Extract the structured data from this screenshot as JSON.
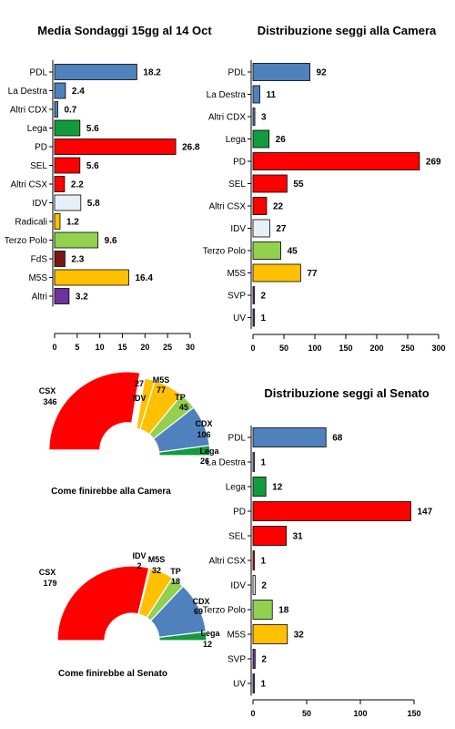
{
  "chart_data": [
    {
      "type": "bar",
      "title": "Media Sondaggi 15gg al 14 Oct",
      "categories": [
        "PDL",
        "La Destra",
        "Altri CDX",
        "Lega",
        "PD",
        "SEL",
        "Altri CSX",
        "IDV",
        "Radicali",
        "Terzo Polo",
        "FdS",
        "M5S",
        "Altri"
      ],
      "values": [
        18.2,
        2.4,
        0.7,
        5.6,
        26.8,
        5.6,
        2.2,
        5.8,
        1.2,
        9.6,
        2.3,
        16.4,
        3.2
      ],
      "value_labels": [
        "18.2",
        "2.4",
        "0.7",
        "5.6",
        "26.8",
        "5.6",
        "2.2",
        "5.8",
        "1.2",
        "9.6",
        "2.3",
        "16.4",
        "3.2"
      ],
      "colors": [
        "#4f81bd",
        "#4f81bd",
        "#4f81bd",
        "#129b3c",
        "#ff0000",
        "#ff0000",
        "#ff0000",
        "#e6f0f8",
        "#ffc000",
        "#92d050",
        "#7b1414",
        "#ffc000",
        "#7030a0"
      ],
      "xlim": [
        0,
        30
      ],
      "xticks": [
        "0",
        "5",
        "10",
        "15",
        "20",
        "25",
        "30"
      ]
    },
    {
      "type": "bar",
      "title": "Distribuzione seggi alla Camera",
      "categories": [
        "PDL",
        "La Destra",
        "Altri CDX",
        "Lega",
        "PD",
        "SEL",
        "Altri CSX",
        "IDV",
        "Terzo Polo",
        "M5S",
        "SVP",
        "UV"
      ],
      "values": [
        92,
        11,
        3,
        26,
        269,
        55,
        22,
        27,
        45,
        77,
        2,
        1
      ],
      "value_labels": [
        "92",
        "11",
        "3",
        "26",
        "269",
        "55",
        "22",
        "27",
        "45",
        "77",
        "2",
        "1"
      ],
      "colors": [
        "#4f81bd",
        "#4f81bd",
        "#4f81bd",
        "#129b3c",
        "#ff0000",
        "#ff0000",
        "#ff0000",
        "#e6f0f8",
        "#92d050",
        "#ffc000",
        "#7030a0",
        "#7030a0"
      ],
      "xlim": [
        0,
        300
      ],
      "xticks": [
        "0",
        "50",
        "100",
        "150",
        "200",
        "250",
        "300"
      ]
    },
    {
      "type": "bar",
      "title": "Distribuzione seggi al Senato",
      "categories": [
        "PDL",
        "La Destra",
        "Lega",
        "PD",
        "SEL",
        "Altri CSX",
        "IDV",
        "Terzo Polo",
        "M5S",
        "SVP",
        "UV"
      ],
      "values": [
        68,
        1,
        12,
        147,
        31,
        1,
        2,
        18,
        32,
        2,
        1
      ],
      "value_labels": [
        "68",
        "1",
        "12",
        "147",
        "31",
        "1",
        "2",
        "18",
        "32",
        "2",
        "1"
      ],
      "colors": [
        "#4f81bd",
        "#4f81bd",
        "#129b3c",
        "#ff0000",
        "#ff0000",
        "#ff0000",
        "#e6f0f8",
        "#92d050",
        "#ffc000",
        "#7030a0",
        "#7030a0"
      ],
      "xlim": [
        0,
        150
      ],
      "xticks": [
        "0",
        "50",
        "100",
        "150"
      ]
    },
    {
      "type": "pie",
      "subtype": "half-donut",
      "caption": "Come finirebbe alla Camera",
      "slices": [
        {
          "name": "CSX",
          "value": 346,
          "value_label": "346",
          "color": "#ff0000",
          "offset": true
        },
        {
          "name": "IDV",
          "value": 27,
          "value_label": "27",
          "color": "#ffc000"
        },
        {
          "name": "M5S",
          "value": 77,
          "value_label": "77",
          "color": "#ffc000"
        },
        {
          "name": "TP",
          "value": 45,
          "value_label": "45",
          "color": "#92d050"
        },
        {
          "name": "CDX",
          "value": 106,
          "value_label": "106",
          "color": "#4f81bd"
        },
        {
          "name": "Lega",
          "value": 26,
          "value_label": "26",
          "color": "#129b3c"
        }
      ]
    },
    {
      "type": "pie",
      "subtype": "half-donut",
      "caption": "Come finirebbe al Senato",
      "slices": [
        {
          "name": "CSX",
          "value": 179,
          "value_label": "179",
          "color": "#ff0000"
        },
        {
          "name": "IDV",
          "value": 2,
          "value_label": "2",
          "color": "#ffc000"
        },
        {
          "name": "M5S",
          "value": 32,
          "value_label": "32",
          "color": "#ffc000"
        },
        {
          "name": "TP",
          "value": 18,
          "value_label": "18",
          "color": "#92d050"
        },
        {
          "name": "CDX",
          "value": 69,
          "value_label": "69",
          "color": "#4f81bd"
        },
        {
          "name": "Lega",
          "value": 12,
          "value_label": "12",
          "color": "#129b3c"
        }
      ]
    }
  ]
}
